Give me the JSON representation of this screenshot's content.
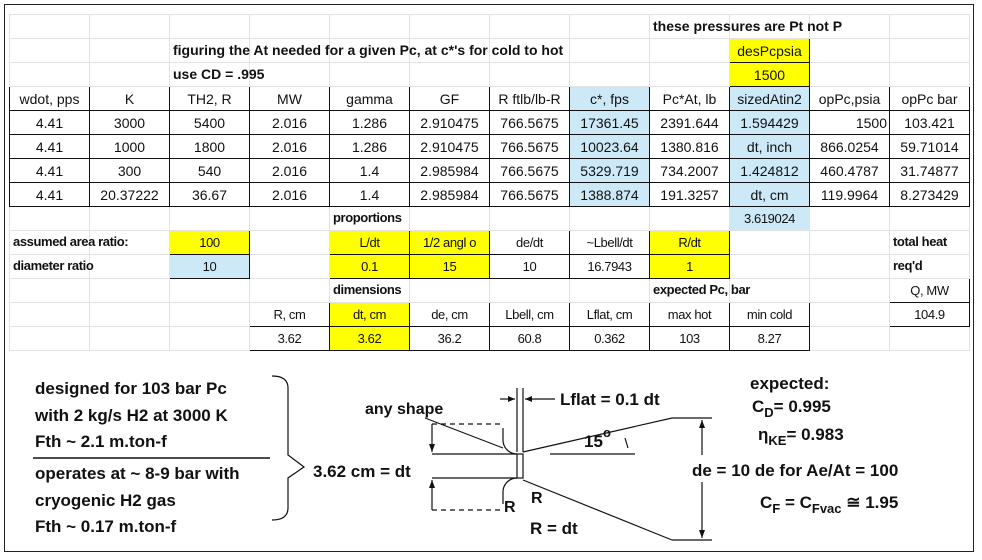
{
  "colors": {
    "yellow": "#ffff00",
    "blue": "#cde9f7"
  },
  "sheet": {
    "rows": [
      [
        "",
        "",
        "",
        "",
        "",
        "",
        "",
        "",
        "these pressures are Pt not P",
        "",
        "",
        ""
      ],
      [
        "",
        "",
        "figuring the At needed for a given Pc,  at c*'s for cold to hot",
        "",
        "",
        "",
        "",
        "",
        "",
        "desPcpsia",
        "",
        ""
      ],
      [
        "",
        "",
        "use CD = .995",
        "",
        "",
        "",
        "",
        "",
        "",
        "1500",
        "",
        ""
      ],
      [
        "wdot, pps",
        "K",
        "TH2, R",
        "MW",
        "gamma",
        "GF",
        "R ftlb/lb-R",
        "c*, fps",
        "Pc*At, lb",
        "sizedAtin2",
        "opPc,psia",
        "opPc bar"
      ],
      [
        "4.41",
        "3000",
        "5400",
        "2.016",
        "1.286",
        "2.910475",
        "766.5675",
        "17361.45",
        "2391.644",
        "1.594429",
        "1500",
        "103.421"
      ],
      [
        "4.41",
        "1000",
        "1800",
        "2.016",
        "1.286",
        "2.910475",
        "766.5675",
        "10023.64",
        "1380.816",
        "dt, inch",
        "866.0254",
        "59.71014"
      ],
      [
        "4.41",
        "300",
        "540",
        "2.016",
        "1.4",
        "2.985984",
        "766.5675",
        "5329.719",
        "734.2007",
        "1.424812",
        "460.4787",
        "31.74877"
      ],
      [
        "4.41",
        "20.37222",
        "36.67",
        "2.016",
        "1.4",
        "2.985984",
        "766.5675",
        "1388.874",
        "191.3257",
        "dt, cm",
        "119.9964",
        "8.273429"
      ],
      [
        "",
        "",
        "",
        "",
        "proportions",
        "",
        "",
        "",
        "",
        "3.619024",
        "",
        ""
      ],
      [
        "assumed area ratio:",
        "",
        "100",
        "",
        "L/dt",
        "1/2 angl o",
        "de/dt",
        "~Lbell/dt",
        "R/dt",
        "",
        "",
        "total heat"
      ],
      [
        "diameter ratio",
        "",
        "10",
        "",
        "0.1",
        "15",
        "10",
        "16.7943",
        "1",
        "",
        "",
        "req'd"
      ],
      [
        "",
        "",
        "",
        "",
        "dimensions",
        "",
        "",
        "",
        "expected Pc, bar",
        "",
        "",
        "Q, MW"
      ],
      [
        "",
        "",
        "",
        "R, cm",
        "dt, cm",
        "de, cm",
        "Lbell, cm",
        "Lflat, cm",
        "max hot",
        "min cold",
        "",
        "104.9"
      ],
      [
        "",
        "",
        "",
        "3.62",
        "3.62",
        "36.2",
        "60.8",
        "0.362",
        "103",
        "8.27",
        "",
        ""
      ]
    ]
  },
  "diagram": {
    "notes": [
      "designed for 103 bar Pc",
      "with 2 kg/s H2 at 3000 K",
      "Fth ~ 2.1 m.ton-f",
      "operates at ~ 8-9 bar with",
      "cryogenic H2 gas",
      "Fth ~ 0.17 m.ton-f"
    ],
    "dt_label": "3.62 cm = dt",
    "any_shape": "any shape",
    "lflat": "Lflat = 0.1 dt",
    "angle": "15",
    "angle_unit": "o",
    "de_label": "de = 10 de for Ae/At = 100",
    "r1": "R",
    "r2": "R",
    "r_eq": "R = dt",
    "expected": "expected:",
    "cd_sym": "C",
    "cd_sub": "D",
    "cd_val": "=   0.995",
    "eta_sym": "η",
    "eta_sub": "KE",
    "eta_val": "= 0.983",
    "cf_sym": "C",
    "cf_sub": "F",
    "cf_mid": " = C",
    "cf_sub2": "Fvac",
    "cf_val": " ≅  1.95"
  }
}
